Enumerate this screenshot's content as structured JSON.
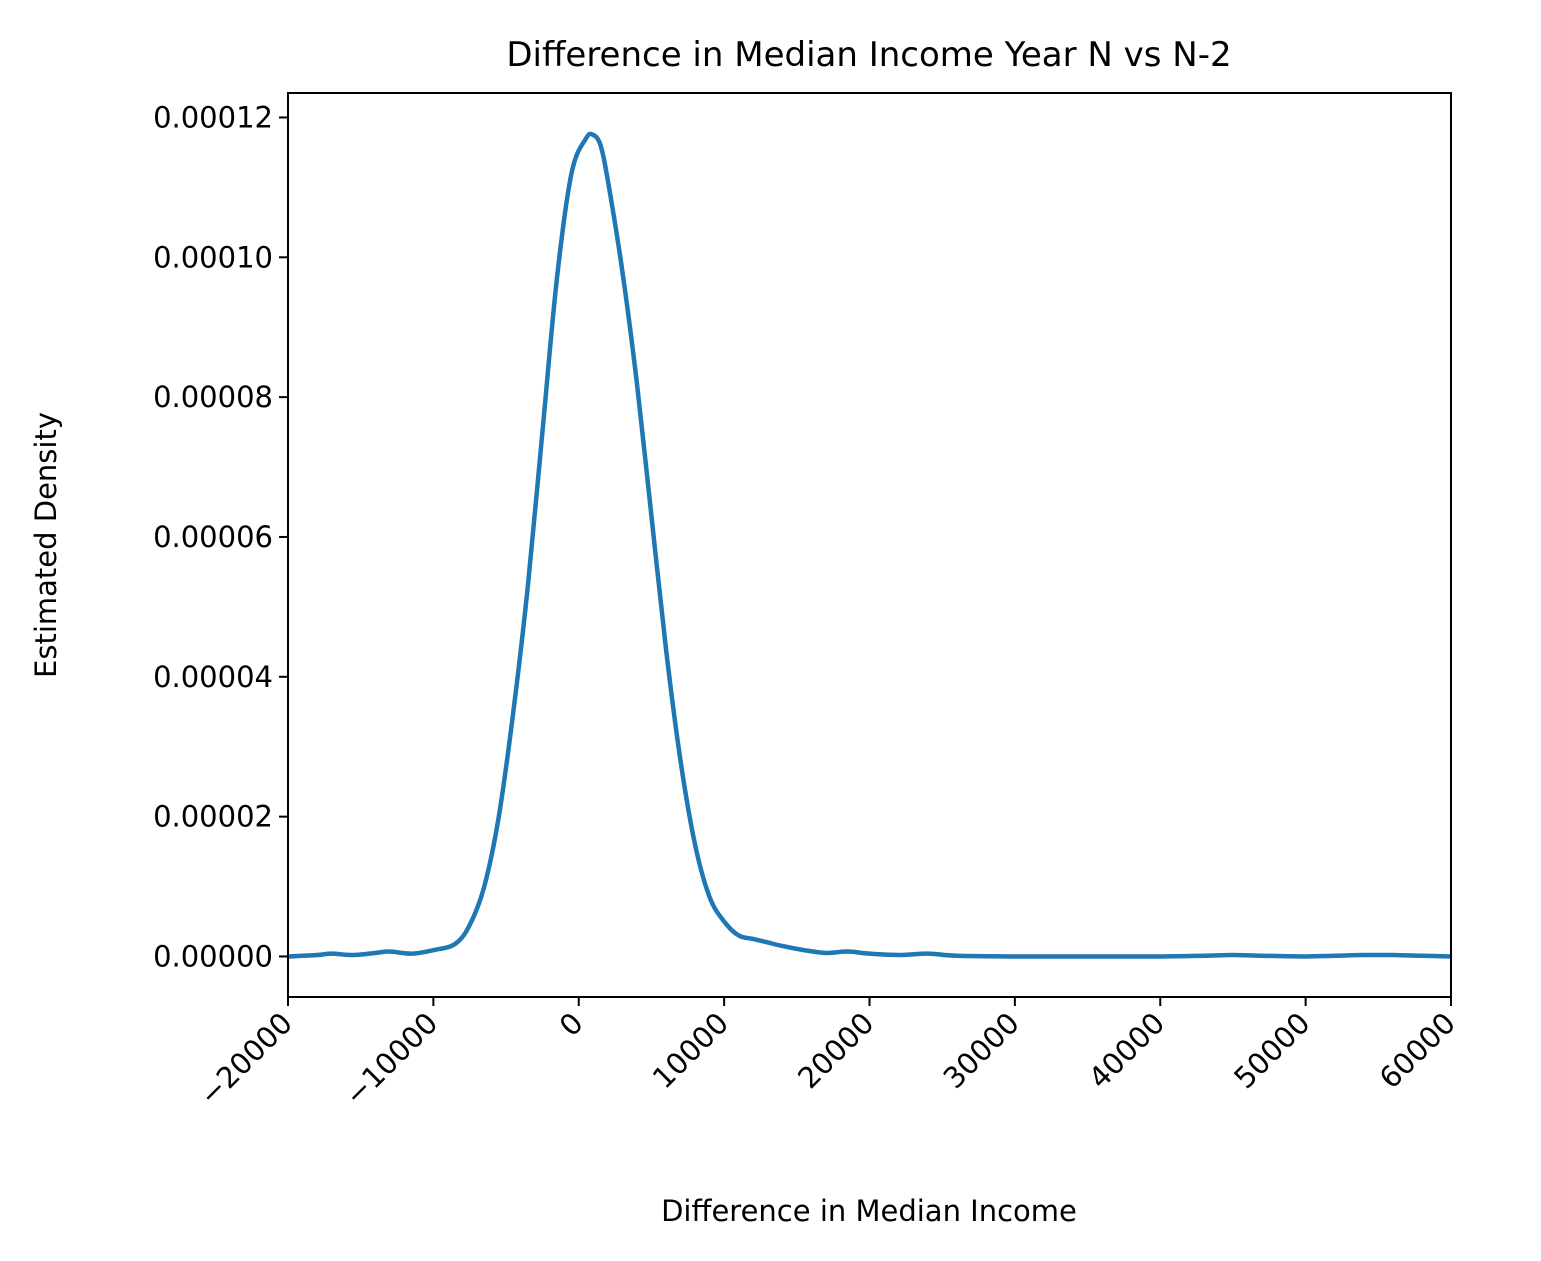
{
  "chart_data": {
    "type": "line",
    "title": "Difference in Median Income Year N vs N-2",
    "xlabel": "Difference in Median Income",
    "ylabel": "Estimated Density",
    "xlim": [
      -20000,
      60000
    ],
    "ylim": [
      -5.8e-06,
      0.0001235
    ],
    "x_ticks": [
      -20000,
      -10000,
      0,
      10000,
      20000,
      30000,
      40000,
      50000,
      60000
    ],
    "x_tick_labels": [
      "−20000",
      "−10000",
      "0",
      "10000",
      "20000",
      "30000",
      "40000",
      "50000",
      "60000"
    ],
    "y_ticks": [
      0,
      2e-05,
      4e-05,
      6e-05,
      8e-05,
      0.0001,
      0.00012
    ],
    "y_tick_labels": [
      "0.00000",
      "0.00002",
      "0.00004",
      "0.00006",
      "0.00008",
      "0.00010",
      "0.00012"
    ],
    "grid": false,
    "legend": "none",
    "series": [
      {
        "color": "#1f77b4",
        "x": [
          -20000,
          -18000,
          -17000,
          -15500,
          -14000,
          -13000,
          -11500,
          -10000,
          -8500,
          -7500,
          -6500,
          -5500,
          -4500,
          -3500,
          -2500,
          -1500,
          -500,
          500,
          1000,
          1500,
          2000,
          3000,
          4000,
          5000,
          6000,
          7000,
          8000,
          9000,
          10000,
          11000,
          12000,
          13000,
          14000,
          15500,
          17000,
          18500,
          20000,
          22000,
          24000,
          26000,
          30000,
          35000,
          40000,
          43000,
          45000,
          47000,
          50000,
          52000,
          54000,
          56000,
          58000,
          60000
        ],
        "y": [
          0,
          2e-07,
          4e-07,
          2e-07,
          5e-07,
          7e-07,
          4e-07,
          9e-07,
          1.8e-06,
          4.5e-06,
          1e-05,
          2e-05,
          3.5e-05,
          5.3e-05,
          7.5e-05,
          9.7e-05,
          0.000112,
          0.000117,
          0.0001175,
          0.000116,
          0.000111,
          9.8e-05,
          8.2e-05,
          6.3e-05,
          4.4e-05,
          2.8e-05,
          1.6e-05,
          8.5e-06,
          5e-06,
          3e-06,
          2.5e-06,
          2e-06,
          1.5e-06,
          9e-07,
          5e-07,
          7e-07,
          4e-07,
          2e-07,
          4e-07,
          1e-07,
          0,
          0,
          0,
          1e-07,
          2e-07,
          1e-07,
          0,
          1e-07,
          2e-07,
          2e-07,
          1e-07,
          0
        ]
      }
    ]
  }
}
